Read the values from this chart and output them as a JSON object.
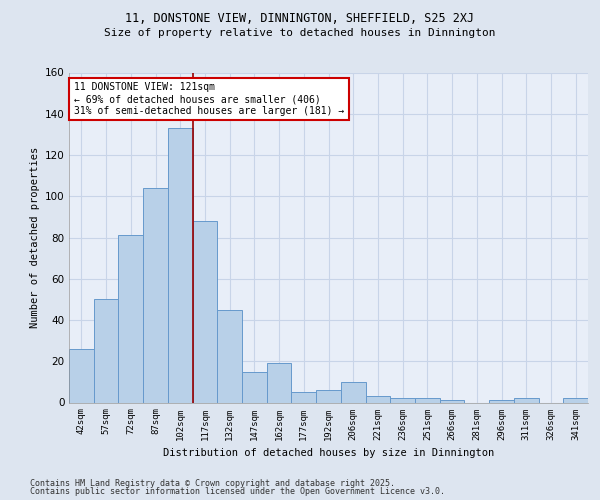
{
  "title1": "11, DONSTONE VIEW, DINNINGTON, SHEFFIELD, S25 2XJ",
  "title2": "Size of property relative to detached houses in Dinnington",
  "xlabel": "Distribution of detached houses by size in Dinnington",
  "ylabel": "Number of detached properties",
  "bins": [
    "42sqm",
    "57sqm",
    "72sqm",
    "87sqm",
    "102sqm",
    "117sqm",
    "132sqm",
    "147sqm",
    "162sqm",
    "177sqm",
    "192sqm",
    "206sqm",
    "221sqm",
    "236sqm",
    "251sqm",
    "266sqm",
    "281sqm",
    "296sqm",
    "311sqm",
    "326sqm",
    "341sqm"
  ],
  "bar_values": [
    26,
    50,
    81,
    104,
    133,
    88,
    45,
    15,
    19,
    5,
    6,
    10,
    3,
    2,
    2,
    1,
    0,
    1,
    2,
    0,
    2
  ],
  "bar_color": "#b8d0e8",
  "bar_edge_color": "#6699cc",
  "vline_color": "#990000",
  "annotation_text": "11 DONSTONE VIEW: 121sqm\n← 69% of detached houses are smaller (406)\n31% of semi-detached houses are larger (181) →",
  "annotation_box_color": "#cc0000",
  "ylim": [
    0,
    160
  ],
  "yticks": [
    0,
    20,
    40,
    60,
    80,
    100,
    120,
    140,
    160
  ],
  "footer1": "Contains HM Land Registry data © Crown copyright and database right 2025.",
  "footer2": "Contains public sector information licensed under the Open Government Licence v3.0.",
  "bg_color": "#dde5f0",
  "plot_bg": "#e8eef8",
  "grid_color": "#c8d4e8"
}
